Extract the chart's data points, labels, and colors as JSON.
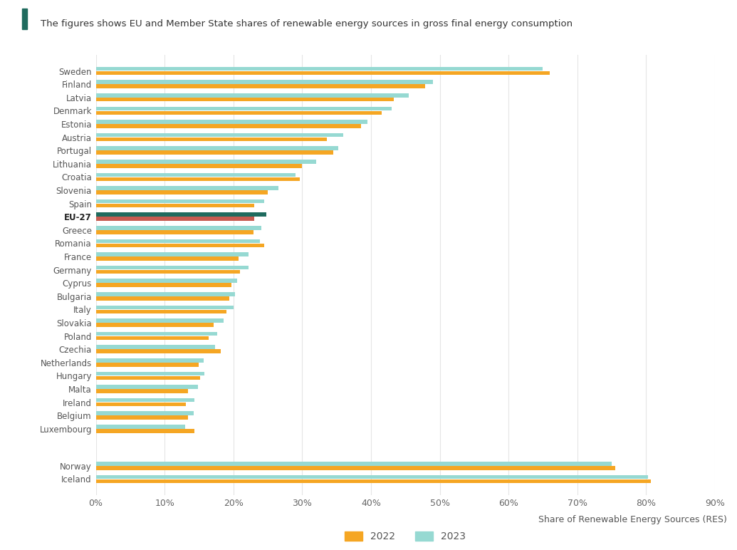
{
  "title": "The figures shows EU and Member State shares of renewable energy sources in gross final energy consumption",
  "xlabel": "Share of Renewable Energy Sources (RES)",
  "legend_labels": [
    "2022",
    "2023"
  ],
  "color_2022": "#F5A623",
  "color_2023": "#96D9D2",
  "color_eu27_2022": "#C75B50",
  "color_eu27_2023": "#1F6B5E",
  "title_bar_color": "#1F6B5E",
  "background_color": "#FFFFFF",
  "countries": [
    "Sweden",
    "Finland",
    "Latvia",
    "Denmark",
    "Estonia",
    "Austria",
    "Portugal",
    "Lithuania",
    "Croatia",
    "Slovenia",
    "Spain",
    "EU-27",
    "Greece",
    "Romania",
    "France",
    "Germany",
    "Cyprus",
    "Bulgaria",
    "Italy",
    "Slovakia",
    "Poland",
    "Czechia",
    "Netherlands",
    "Hungary",
    "Malta",
    "Ireland",
    "Belgium",
    "Luxembourg",
    "",
    "Norway",
    "Iceland"
  ],
  "values_2022": [
    66.0,
    47.9,
    43.3,
    41.6,
    38.6,
    33.6,
    34.5,
    30.0,
    29.7,
    25.0,
    23.0,
    23.0,
    22.9,
    24.5,
    20.7,
    21.0,
    19.7,
    19.4,
    19.0,
    17.1,
    16.4,
    18.2,
    15.0,
    15.2,
    13.4,
    13.1,
    13.4,
    14.3,
    0,
    75.5,
    80.7
  ],
  "values_2023": [
    65.0,
    49.0,
    45.5,
    43.0,
    39.5,
    36.0,
    35.2,
    32.0,
    29.0,
    26.5,
    24.5,
    24.8,
    24.1,
    23.9,
    22.2,
    22.2,
    20.5,
    20.2,
    20.0,
    18.6,
    17.6,
    17.3,
    15.7,
    15.8,
    14.8,
    14.3,
    14.2,
    13.0,
    0,
    75.0,
    80.3
  ],
  "xlim": [
    0,
    90
  ],
  "xticks": [
    0,
    10,
    20,
    30,
    40,
    50,
    60,
    70,
    80,
    90
  ],
  "xticklabels": [
    "0%",
    "10%",
    "20%",
    "30%",
    "40%",
    "50%",
    "60%",
    "70%",
    "80%",
    "90%"
  ]
}
